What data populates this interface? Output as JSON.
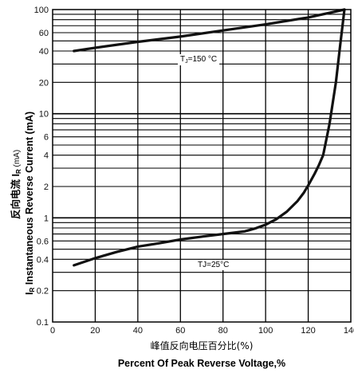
{
  "chart_data": {
    "type": "line",
    "y_scale": "log",
    "xlim": [
      0,
      140
    ],
    "ylim": [
      0.1,
      100
    ],
    "x_ticks": [
      "0",
      "20",
      "40",
      "60",
      "80",
      "100",
      "120",
      "140"
    ],
    "y_ticks": [
      "0.1",
      "0.2",
      "0.4",
      "0.6",
      "1",
      "2",
      "4",
      "6",
      "10",
      "20",
      "40",
      "60",
      "100"
    ],
    "y_ticks_values": [
      0.1,
      0.2,
      0.4,
      0.6,
      1,
      2,
      4,
      6,
      10,
      20,
      40,
      60,
      100
    ],
    "grid": true,
    "ylabel_line1": "反向电流   I",
    "ylabel_line1_sub": "R",
    "ylabel_line1_unit": "  (mA)",
    "ylabel_line2_prefix": "I",
    "ylabel_line2_sub": "R",
    "ylabel_line2": " Instantaneous Reverse Current (mA)",
    "xlabel_line1": "峰值反向电压百分比(%)",
    "xlabel_line2": "Percent  Of Peak Reverse Voltage,%",
    "series": [
      {
        "annotation_prefix": "T",
        "annotation_sub": "J",
        "annotation_rest": "=150 °C",
        "x": [
          10,
          20,
          40,
          60,
          80,
          100,
          120,
          137
        ],
        "y": [
          40,
          43,
          49,
          55,
          63,
          72,
          84,
          100
        ]
      },
      {
        "annotation_prefix": "TJ=25°C",
        "annotation_sub": "",
        "annotation_rest": "",
        "x": [
          10,
          20,
          30,
          40,
          50,
          60,
          70,
          80,
          90,
          95,
          100,
          105,
          110,
          115,
          118,
          120,
          123,
          125,
          127,
          128,
          130,
          133,
          135,
          137
        ],
        "y": [
          0.35,
          0.41,
          0.47,
          0.53,
          0.57,
          0.62,
          0.66,
          0.7,
          0.74,
          0.79,
          0.86,
          0.97,
          1.15,
          1.45,
          1.75,
          2.05,
          2.65,
          3.2,
          4.0,
          5.0,
          8.0,
          20.0,
          45.0,
          100.0
        ]
      }
    ]
  }
}
